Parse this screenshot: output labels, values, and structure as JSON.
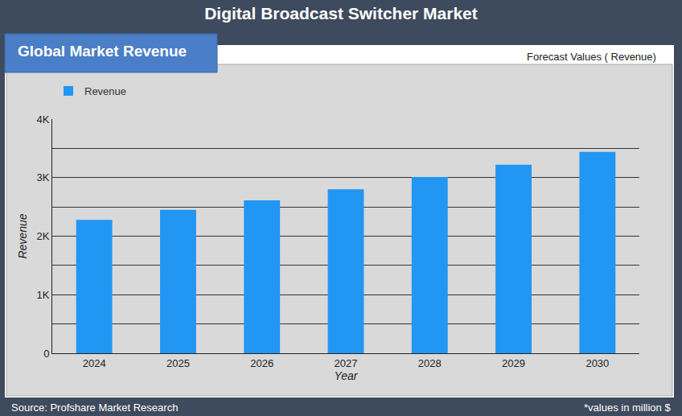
{
  "chart_data": {
    "type": "bar",
    "title": "Digital Broadcast Switcher Market",
    "subtitle": "Global Market Revenue",
    "annotations": [
      "Forecast Values ( Revenue)",
      "Source: Profshare Market Research",
      "*values in million $"
    ],
    "x_label": "Year",
    "y_label": "Revenue",
    "categories": [
      "2024",
      "2025",
      "2026",
      "2027",
      "2028",
      "2029",
      "2030"
    ],
    "series": [
      {
        "name": "Revenue",
        "color": "#2196f3",
        "values": [
          2280,
          2450,
          2610,
          2800,
          3010,
          3220,
          3440
        ]
      }
    ],
    "ylim": [
      0,
      4000
    ],
    "yticks": [
      0,
      {
        "value": 1000,
        "label": "1K"
      },
      {
        "value": 2000,
        "label": "2K"
      },
      {
        "value": 3000,
        "label": "3K"
      },
      {
        "value": 4000,
        "label": "4K"
      }
    ],
    "grid": true,
    "legend": "top left"
  }
}
